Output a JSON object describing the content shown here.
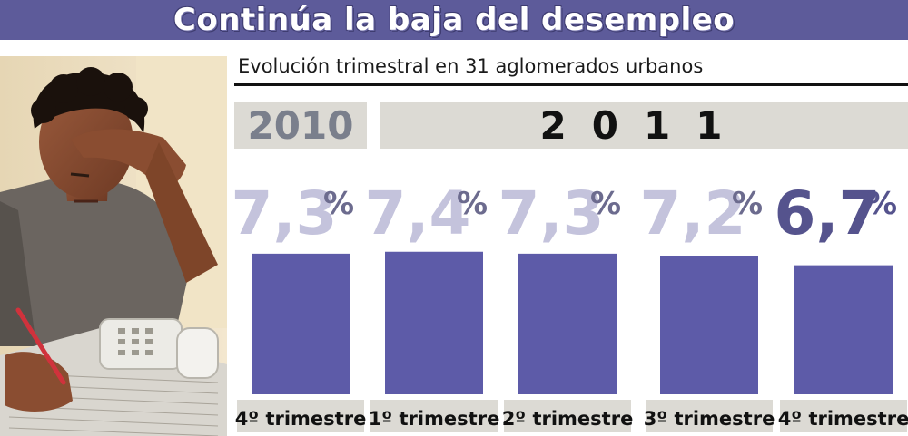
{
  "title": "Continúa la baja del desempleo",
  "subtitle": "Evolución trimestral en 31 aglomerados urbanos",
  "years": [
    "2010",
    "2011"
  ],
  "photo": {
    "alt": "man-studying-classifieds"
  },
  "colors": {
    "header": "#5d5b9a",
    "bar": "#5d5ba8",
    "label_faded": "#c4c3dc",
    "label_highlight": "#55538d",
    "year_box": "#dcdad4",
    "xlabel_box": "#dcdad4"
  },
  "chart_data": {
    "type": "bar",
    "categories": [
      "4º trimestre",
      "1º trimestre",
      "2º trimestre",
      "3º trimestre",
      "4º trimestre"
    ],
    "values": [
      7.3,
      7.4,
      7.3,
      7.2,
      6.7
    ],
    "value_labels": [
      "7,3",
      "7,4",
      "7,3",
      "7,2",
      "6,7"
    ],
    "unit": "%",
    "highlight_index": 4,
    "ylim": [
      0,
      8
    ],
    "grid": false,
    "legend": "none"
  }
}
